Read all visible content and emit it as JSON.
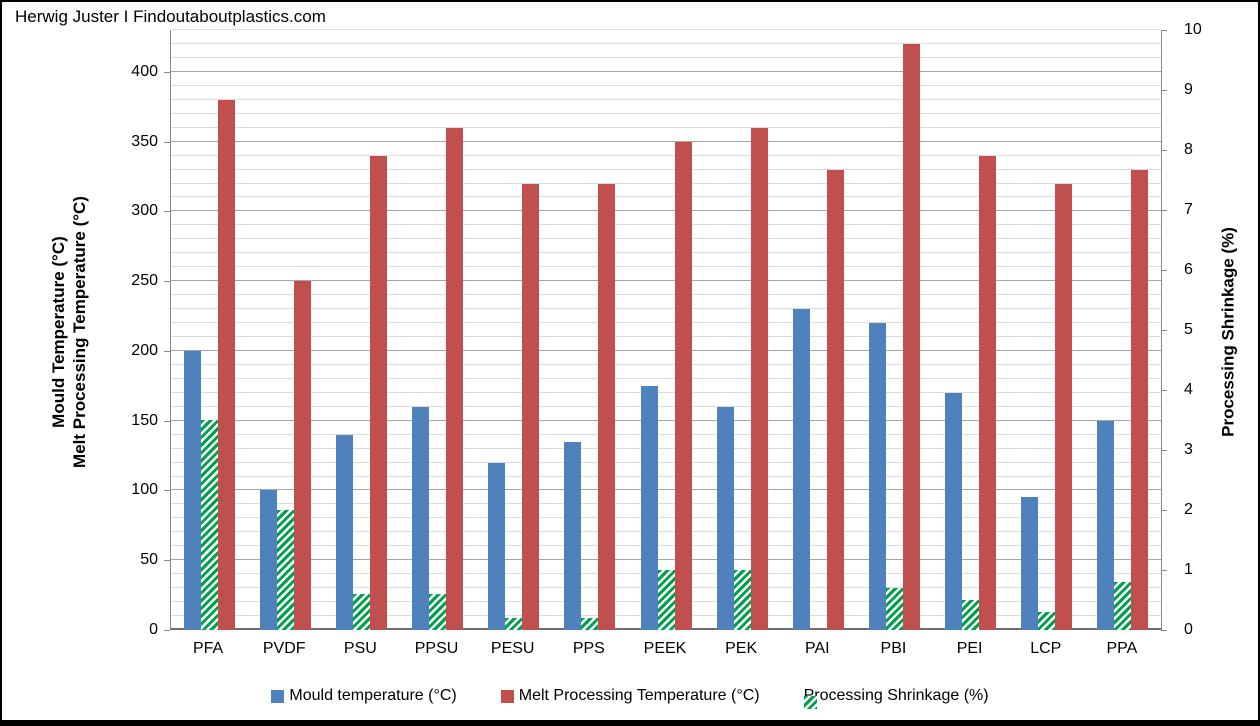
{
  "header": {
    "title": "Herwig Juster I Findoutaboutplastics.com"
  },
  "chart_data": {
    "type": "bar",
    "categories": [
      "PFA",
      "PVDF",
      "PSU",
      "PPSU",
      "PESU",
      "PPS",
      "PEEK",
      "PEK",
      "PAI",
      "PBI",
      "PEI",
      "LCP",
      "PPA"
    ],
    "series": [
      {
        "name": "Mould temperature (°C)",
        "axis": "left",
        "color": "#4F81BD",
        "pattern": "solid",
        "values": [
          200,
          100,
          140,
          160,
          120,
          135,
          175,
          160,
          230,
          220,
          170,
          95,
          150
        ]
      },
      {
        "name": "Melt Processing Temperature (°C)",
        "axis": "left",
        "color": "#C0504D",
        "pattern": "solid",
        "values": [
          380,
          250,
          340,
          360,
          320,
          320,
          350,
          360,
          330,
          420,
          340,
          320,
          330
        ]
      },
      {
        "name": "Processing Shrinkage (%)",
        "axis": "right",
        "color": "#00A14B",
        "pattern": "diagonal-hatch",
        "values": [
          3.5,
          2,
          0.6,
          0.6,
          0.2,
          0.2,
          1,
          1,
          0,
          0.7,
          0.5,
          0.3,
          0.8
        ]
      }
    ],
    "bar_order": [
      0,
      2,
      1
    ],
    "left_axis": {
      "title_lines": [
        "Mould Temperature (°C)",
        "Melt Processing Temperature (°C)"
      ],
      "min": 0,
      "max": 430,
      "major_step": 50,
      "minor_step": 10,
      "last_label": 400
    },
    "right_axis": {
      "title": "Processing Shrinkage (%)",
      "min": 0,
      "max": 10,
      "major_step": 1
    },
    "legend_position": "bottom",
    "grid": true,
    "colors": {
      "minor_grid": "#DCDCDC",
      "major_grid": "#A6A6A6",
      "axis_line": "#898989"
    }
  }
}
